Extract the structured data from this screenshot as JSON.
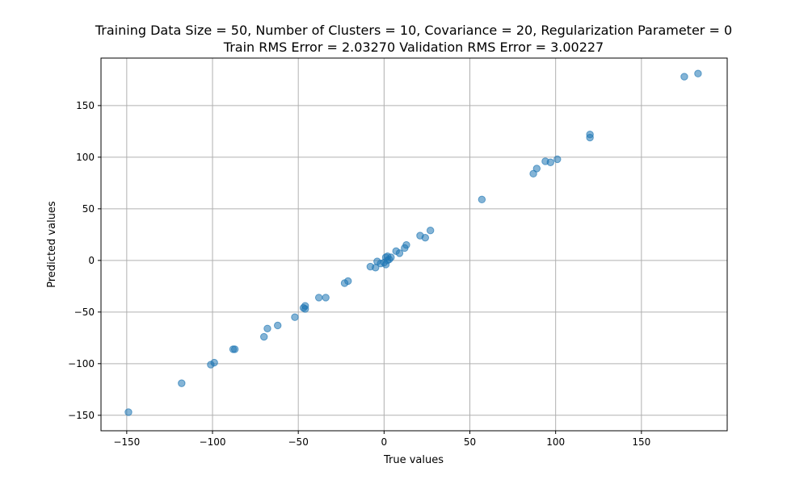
{
  "chart_data": {
    "type": "scatter",
    "title": "Training Data Size = 50, Number of Clusters = 10, Covariance = 20, Regularization Parameter = 0",
    "subtitle": "Train RMS Error = 2.03270 Validation RMS Error = 3.00227",
    "xlabel": "True values",
    "ylabel": "Predicted values",
    "xlim": [
      -165,
      200
    ],
    "ylim": [
      -165,
      196
    ],
    "xticks": [
      -150,
      -100,
      -50,
      0,
      50,
      100,
      150
    ],
    "yticks": [
      -150,
      -100,
      -50,
      0,
      50,
      100,
      150
    ],
    "xtick_labels": [
      "−150",
      "−100",
      "−50",
      "0",
      "50",
      "100",
      "150"
    ],
    "ytick_labels": [
      "−150",
      "−100",
      "−50",
      "0",
      "50",
      "100",
      "150"
    ],
    "grid": true,
    "marker_color": "#1f77b4",
    "marker_alpha": 0.55,
    "points": [
      {
        "x": -149,
        "y": -147
      },
      {
        "x": -118,
        "y": -119
      },
      {
        "x": -101,
        "y": -101
      },
      {
        "x": -99,
        "y": -99
      },
      {
        "x": -88,
        "y": -86
      },
      {
        "x": -87,
        "y": -86
      },
      {
        "x": -70,
        "y": -74
      },
      {
        "x": -68,
        "y": -66
      },
      {
        "x": -62,
        "y": -63
      },
      {
        "x": -52,
        "y": -55
      },
      {
        "x": -47,
        "y": -46
      },
      {
        "x": -46,
        "y": -44
      },
      {
        "x": -46,
        "y": -47
      },
      {
        "x": -38,
        "y": -36
      },
      {
        "x": -34,
        "y": -36
      },
      {
        "x": -23,
        "y": -22
      },
      {
        "x": -21,
        "y": -20
      },
      {
        "x": -8,
        "y": -6
      },
      {
        "x": -5,
        "y": -7
      },
      {
        "x": -4,
        "y": -1
      },
      {
        "x": -2,
        "y": -3
      },
      {
        "x": 0,
        "y": -2
      },
      {
        "x": 1,
        "y": 3
      },
      {
        "x": 1,
        "y": -4
      },
      {
        "x": 2,
        "y": 0
      },
      {
        "x": 2,
        "y": 4
      },
      {
        "x": 3,
        "y": 1
      },
      {
        "x": 4,
        "y": 3
      },
      {
        "x": 7,
        "y": 9
      },
      {
        "x": 9,
        "y": 7
      },
      {
        "x": 12,
        "y": 12
      },
      {
        "x": 13,
        "y": 15
      },
      {
        "x": 21,
        "y": 24
      },
      {
        "x": 24,
        "y": 22
      },
      {
        "x": 27,
        "y": 29
      },
      {
        "x": 57,
        "y": 59
      },
      {
        "x": 87,
        "y": 84
      },
      {
        "x": 89,
        "y": 89
      },
      {
        "x": 94,
        "y": 96
      },
      {
        "x": 97,
        "y": 95
      },
      {
        "x": 101,
        "y": 98
      },
      {
        "x": 120,
        "y": 119
      },
      {
        "x": 120,
        "y": 122
      },
      {
        "x": 175,
        "y": 178
      },
      {
        "x": 183,
        "y": 181
      }
    ]
  }
}
